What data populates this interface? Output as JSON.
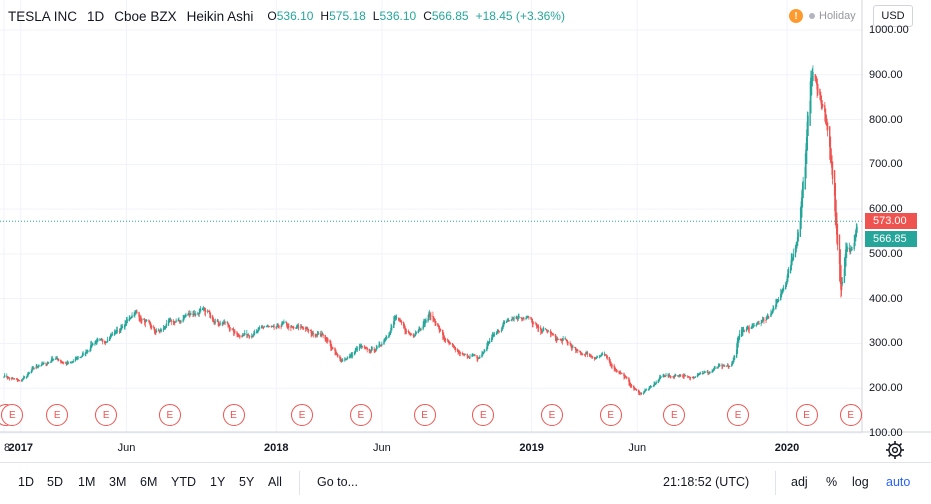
{
  "legend": {
    "symbol": "TESLA INC",
    "interval": "1D",
    "exchange": "Cboe BZX",
    "style": "Heikin Ashi",
    "o_label": "O",
    "o_value": "536.10",
    "h_label": "H",
    "h_value": "575.18",
    "l_label": "L",
    "l_value": "536.10",
    "c_label": "C",
    "c_value": "566.85",
    "change": "+18.45 (+3.36%)"
  },
  "status": {
    "warning_glyph": "!",
    "holiday": "Holiday"
  },
  "currency": "USD",
  "y_axis": {
    "ticks": [
      "1000.00",
      "900.00",
      "800.00",
      "700.00",
      "600.00",
      "500.00",
      "400.00",
      "300.00",
      "200.00",
      "100.00"
    ],
    "last_close_badge": "566.85",
    "prev_badge": "573.00"
  },
  "x_axis": {
    "ticks": [
      {
        "label": "8",
        "bold": false
      },
      {
        "label": "2017",
        "bold": true
      },
      {
        "label": "Jun",
        "bold": false
      },
      {
        "label": "2018",
        "bold": true
      },
      {
        "label": "Jun",
        "bold": false
      },
      {
        "label": "2019",
        "bold": true
      },
      {
        "label": "Jun",
        "bold": false
      },
      {
        "label": "2020",
        "bold": true
      }
    ]
  },
  "earnings_marker": "E",
  "toolbar": {
    "ranges": [
      "1D",
      "5D",
      "1M",
      "3M",
      "6M",
      "YTD",
      "1Y",
      "5Y",
      "All"
    ],
    "goto": "Go to...",
    "clock": "21:18:52 (UTC)",
    "adj": "adj",
    "percent": "%",
    "log": "log",
    "auto": "auto"
  },
  "colors": {
    "up": "#26a69a",
    "down": "#ef5350",
    "grid": "#f0f3fa",
    "accent": "#2962ff"
  },
  "chart_data": {
    "type": "candlestick",
    "style": "Heikin Ashi",
    "symbol": "TESLA INC",
    "ylim": [
      100,
      1000
    ],
    "anchors": [
      [
        "2016-12-08",
        230
      ],
      [
        "2016-12-30",
        213
      ],
      [
        "2017-01-15",
        240
      ],
      [
        "2017-02-15",
        265
      ],
      [
        "2017-03-15",
        255
      ],
      [
        "2017-04-15",
        300
      ],
      [
        "2017-05-10",
        315
      ],
      [
        "2017-06-15",
        370
      ],
      [
        "2017-07-10",
        325
      ],
      [
        "2017-08-10",
        350
      ],
      [
        "2017-09-15",
        375
      ],
      [
        "2017-10-15",
        345
      ],
      [
        "2017-11-15",
        315
      ],
      [
        "2017-12-15",
        335
      ],
      [
        "2018-01-15",
        340
      ],
      [
        "2018-02-15",
        330
      ],
      [
        "2018-03-15",
        310
      ],
      [
        "2018-04-01",
        258
      ],
      [
        "2018-05-01",
        290
      ],
      [
        "2018-05-25",
        285
      ],
      [
        "2018-06-20",
        355
      ],
      [
        "2018-07-15",
        315
      ],
      [
        "2018-08-07",
        365
      ],
      [
        "2018-09-10",
        285
      ],
      [
        "2018-10-15",
        265
      ],
      [
        "2018-11-20",
        345
      ],
      [
        "2018-12-15",
        365
      ],
      [
        "2019-01-15",
        330
      ],
      [
        "2019-02-15",
        305
      ],
      [
        "2019-03-15",
        275
      ],
      [
        "2019-04-15",
        270
      ],
      [
        "2019-05-15",
        220
      ],
      [
        "2019-06-05",
        185
      ],
      [
        "2019-07-10",
        230
      ],
      [
        "2019-08-15",
        225
      ],
      [
        "2019-09-15",
        240
      ],
      [
        "2019-10-15",
        255
      ],
      [
        "2019-10-25",
        325
      ],
      [
        "2019-11-20",
        345
      ],
      [
        "2019-12-15",
        380
      ],
      [
        "2020-01-15",
        520
      ],
      [
        "2020-02-04",
        890
      ],
      [
        "2020-02-18",
        860
      ],
      [
        "2020-03-01",
        740
      ],
      [
        "2020-03-18",
        420
      ],
      [
        "2020-03-25",
        520
      ],
      [
        "2020-04-03",
        500
      ],
      [
        "2020-04-10",
        566.85
      ]
    ],
    "earnings_dates": [
      "2016-11-20",
      "2016-12-20",
      "2017-02-22",
      "2017-05-03",
      "2017-08-02",
      "2017-11-01",
      "2018-02-07",
      "2018-05-02",
      "2018-08-01",
      "2018-10-24",
      "2019-01-30",
      "2019-04-24",
      "2019-07-24",
      "2019-10-23",
      "2020-01-29",
      "2020-04-01"
    ],
    "last": {
      "open": 536.1,
      "high": 575.18,
      "low": 536.1,
      "close": 566.85,
      "change": 18.45,
      "change_pct": 3.36
    }
  }
}
